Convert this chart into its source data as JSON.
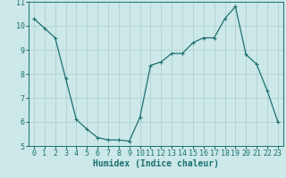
{
  "title": "",
  "xlabel": "Humidex (Indice chaleur)",
  "ylabel": "",
  "x": [
    0,
    1,
    2,
    3,
    4,
    5,
    6,
    7,
    8,
    9,
    10,
    11,
    12,
    13,
    14,
    15,
    16,
    17,
    18,
    19,
    20,
    21,
    22,
    23
  ],
  "y": [
    10.3,
    9.9,
    9.5,
    7.8,
    6.1,
    5.7,
    5.35,
    5.25,
    5.25,
    5.2,
    6.2,
    8.35,
    8.5,
    8.85,
    8.85,
    9.3,
    9.5,
    9.5,
    10.3,
    10.8,
    8.8,
    8.4,
    7.3,
    6.0
  ],
  "line_color": "#1e7070",
  "marker": "+",
  "marker_size": 3,
  "bg_color": "#cce8e8",
  "grid_color": "#aacccc",
  "axis_bg": "#cce8e8",
  "ylim": [
    5,
    11
  ],
  "xlim": [
    -0.5,
    23.5
  ],
  "yticks": [
    5,
    6,
    7,
    8,
    9,
    10,
    11
  ],
  "xticks": [
    0,
    1,
    2,
    3,
    4,
    5,
    6,
    7,
    8,
    9,
    10,
    11,
    12,
    13,
    14,
    15,
    16,
    17,
    18,
    19,
    20,
    21,
    22,
    23
  ],
  "xlabel_fontsize": 7,
  "tick_fontsize": 6,
  "linewidth": 0.9,
  "marker_linewidth": 0.8
}
